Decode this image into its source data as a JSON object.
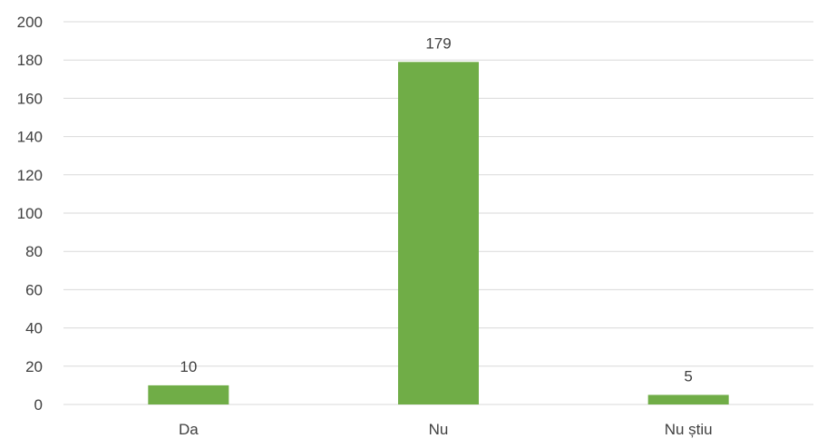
{
  "chart_data": {
    "type": "bar",
    "title": "",
    "xlabel": "",
    "ylabel": "",
    "categories": [
      "Da",
      "Nu",
      "Nu știu"
    ],
    "values": [
      10,
      179,
      5
    ],
    "data_labels": [
      "10",
      "179",
      "5"
    ],
    "ylim": [
      0,
      200
    ],
    "yticks": [
      0,
      20,
      40,
      60,
      80,
      100,
      120,
      140,
      160,
      180,
      200
    ],
    "grid": true,
    "legend": "none",
    "bar_color": "#70AD47",
    "grid_color": "#D9D9D9",
    "text_color": "#404040"
  }
}
